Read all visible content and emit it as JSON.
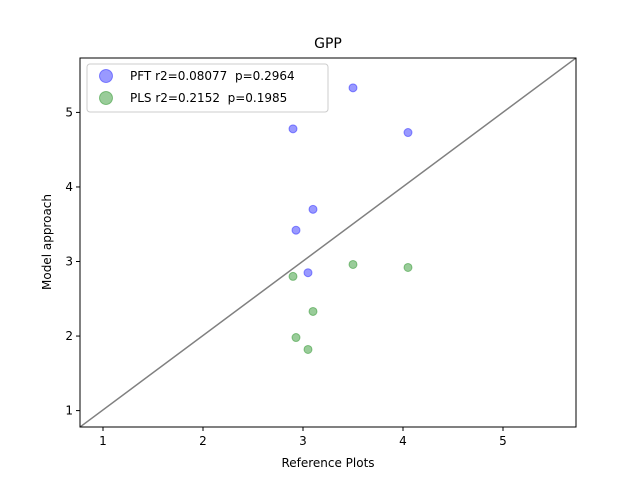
{
  "chart_data": {
    "type": "scatter",
    "title": "GPP",
    "xlabel": "Reference Plots",
    "ylabel": "Model approach",
    "xlim": [
      0.77,
      5.73
    ],
    "ylim": [
      0.78,
      5.73
    ],
    "xticks": [
      1,
      2,
      3,
      4,
      5
    ],
    "yticks": [
      1,
      2,
      3,
      4,
      5
    ],
    "grid": false,
    "legend_position": "top-left",
    "identity_line": {
      "color": "#808080",
      "from": [
        0.77,
        0.78
      ],
      "to": [
        5.73,
        5.73
      ]
    },
    "series": [
      {
        "name": "PFT r2=0.08077  p=0.2964",
        "color": "#0000ff",
        "x": [
          3.5,
          2.9,
          4.05,
          3.1,
          2.93,
          3.05
        ],
        "y": [
          5.33,
          4.78,
          4.73,
          3.7,
          3.42,
          2.85
        ]
      },
      {
        "name": "PLS r2=0.2152  p=0.1985",
        "color": "#008000",
        "x": [
          2.9,
          3.5,
          4.05,
          3.1,
          2.93,
          3.05
        ],
        "y": [
          2.8,
          2.96,
          2.92,
          2.33,
          1.98,
          1.82
        ]
      }
    ]
  }
}
